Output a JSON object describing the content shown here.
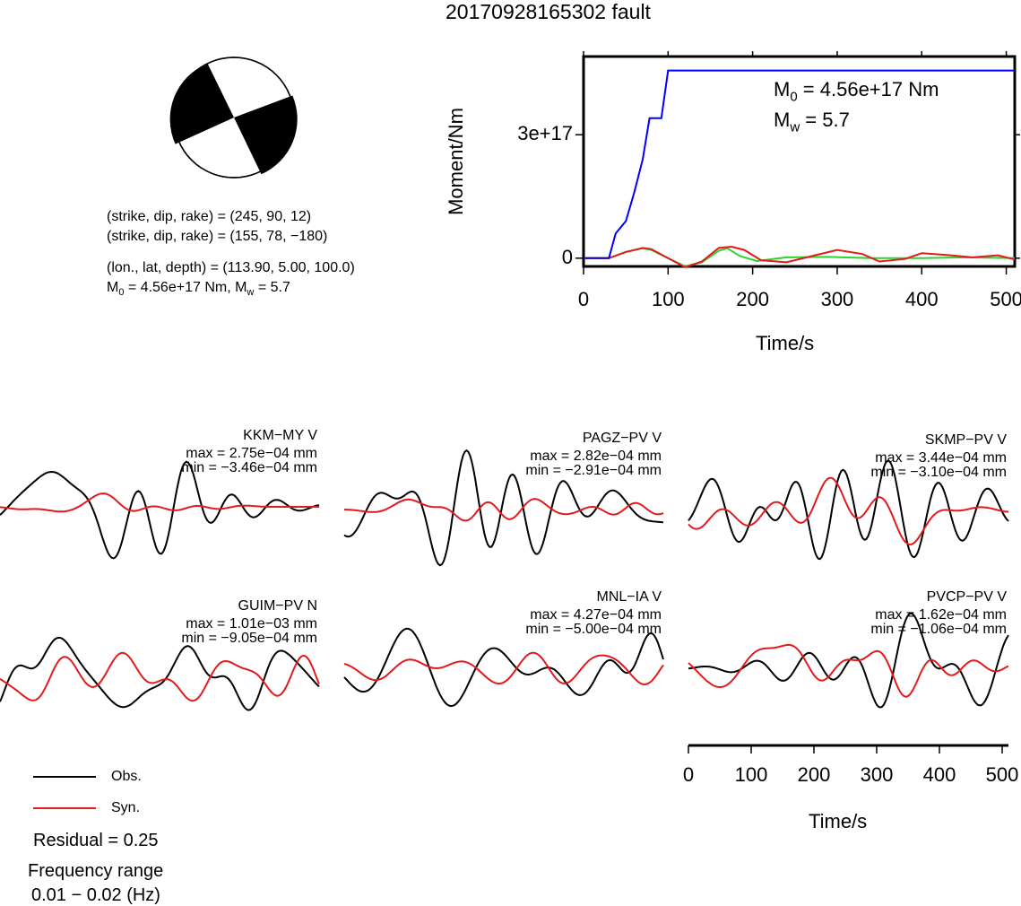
{
  "title": "20170928165302 fault",
  "focal": {
    "line1": "(strike, dip, rake) = (245, 90, 12)",
    "line2": "(strike, dip, rake) = (155, 78, −180)",
    "line3": "(lon., lat, depth) = (113.90, 5.00, 100.0)",
    "line4": "M₀ = 4.56e+17 Nm, Mᵥᵥ = 5.7"
  },
  "moment_annot": {
    "m0": "M₀ = 4.56e+17 Nm",
    "mw": "Mw = 5.7"
  },
  "colors": {
    "obs": "#000000",
    "syn": "#e31a1c",
    "moment": "#0000ff",
    "green": "#2ad42a",
    "brown": "#8b6a14"
  },
  "legend": {
    "obs": "Obs.",
    "syn": "Syn."
  },
  "residual": "Residual = 0.25",
  "freq_label": "Frequency range",
  "freq_value": "0.01 − 0.02 (Hz)",
  "chart_data": [
    {
      "type": "line",
      "title": "",
      "xlabel": "Time/s",
      "ylabel": "Moment/Nm",
      "xlim": [
        0,
        510
      ],
      "ylim": [
        -2e+16,
        4.9e+17
      ],
      "xticks": [
        0,
        100,
        200,
        300,
        400,
        500
      ],
      "yticks": [
        0,
        3e+17
      ],
      "ytick_labels": [
        "0",
        "3e+17"
      ],
      "series": [
        {
          "name": "",
          "color": "#0000ff",
          "x": [
            0,
            30,
            38,
            50,
            60,
            70,
            78,
            82,
            92,
            100,
            510
          ],
          "y": [
            0,
            0,
            6e+16,
            9e+16,
            1.6e+17,
            2.4e+17,
            3.4e+17,
            3.4e+17,
            3.4e+17,
            4.56e+17,
            4.56e+17
          ]
        },
        {
          "name": "",
          "color": "#e31a1c",
          "x": [
            0,
            30,
            50,
            70,
            80,
            100,
            120,
            140,
            160,
            175,
            190,
            210,
            240,
            270,
            300,
            330,
            350,
            380,
            400,
            430,
            460,
            490,
            510
          ],
          "y": [
            0,
            0,
            1.5e+16,
            2.5e+16,
            2.2e+16,
            0.0,
            -2.2e+16,
            -8000000000000000.0,
            2.5e+16,
            2.8e+16,
            2e+16,
            -5000000000000000.0,
            -1e+16,
            5000000000000000.0,
            2e+16,
            1e+16,
            -8000000000000000.0,
            -2000000000000000.0,
            1.2e+16,
            8000000000000000.0,
            2000000000000000.0,
            7000000000000000.0,
            -3000000000000000.0
          ]
        },
        {
          "name": "",
          "color": "#2ad42a",
          "x": [
            0,
            30,
            50,
            70,
            80,
            100,
            120,
            140,
            160,
            170,
            185,
            205,
            240,
            290,
            340,
            400,
            450,
            510
          ],
          "y": [
            0,
            0,
            1.5e+16,
            2.4e+16,
            2e+16,
            0.0,
            -2e+16,
            -1e+16,
            1.8e+16,
            2.4e+16,
            5000000000000000.0,
            -7000000000000000.0,
            2000000000000000.0,
            3000000000000000.0,
            0.0,
            0.0,
            2000000000000000.0,
            0.0
          ]
        }
      ]
    },
    {
      "type": "line",
      "title": "",
      "xlabel": "Time/s",
      "xlim": [
        0,
        510
      ],
      "xticks": [
        0,
        100,
        200,
        300,
        400,
        500
      ],
      "stations": [
        {
          "name": "KKM−MY V",
          "max": "max = 2.75e−04 mm",
          "min": "min = −3.46e−04 mm"
        },
        {
          "name": "PAGZ−PV V",
          "max": "max = 2.82e−04 mm",
          "min": "min = −2.91e−04 mm"
        },
        {
          "name": "SKMP−PV V",
          "max": "max = 3.44e−04 mm",
          "min": "min = −3.10e−04 mm"
        },
        {
          "name": "GUIM−PV N",
          "max": "max = 1.01e−03 mm",
          "min": "min = −9.05e−04 mm"
        },
        {
          "name": "MNL−IA V",
          "max": "max = 4.27e−04 mm",
          "min": "min = −5.00e−04 mm"
        },
        {
          "name": "PVCP−PV V",
          "max": "max = 1.62e−04 mm",
          "min": "min = −1.06e−04 mm"
        }
      ]
    }
  ]
}
